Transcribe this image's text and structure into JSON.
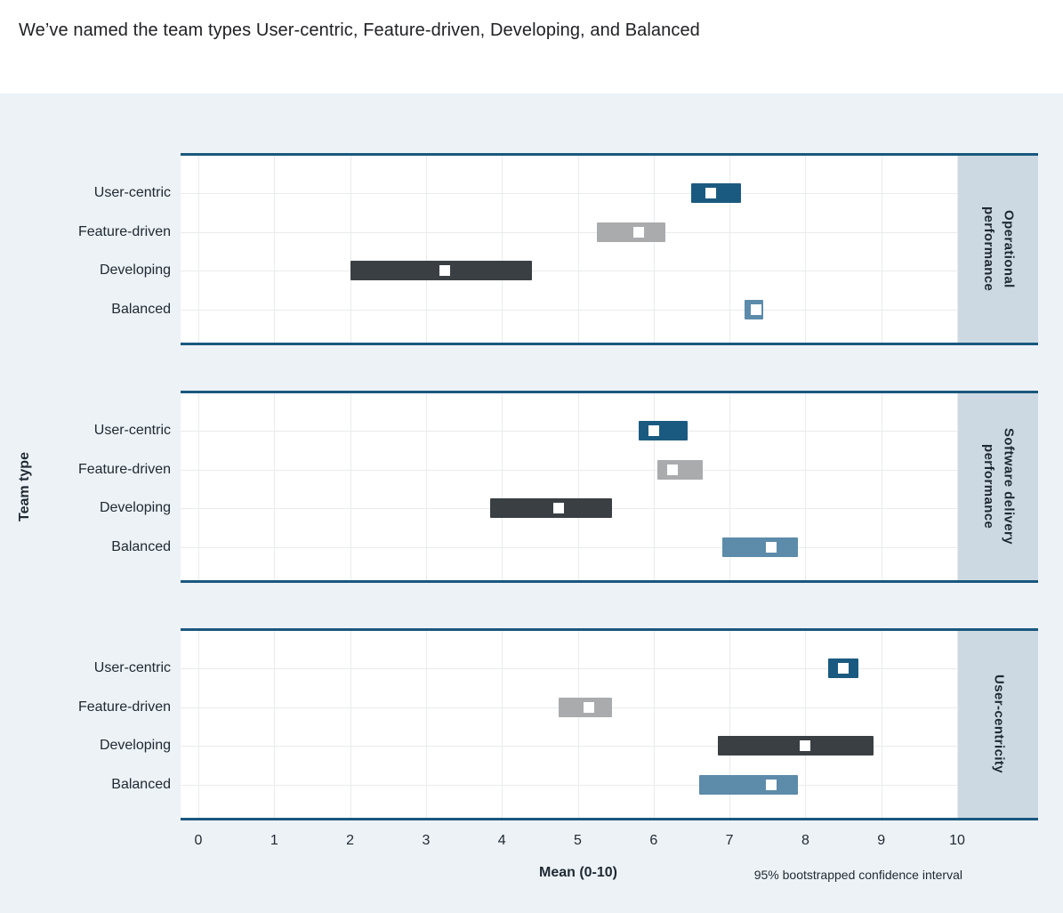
{
  "header": {
    "title": "We’ve named the team types User-centric, Feature-driven, Developing, and Balanced"
  },
  "colors": {
    "page_bg": "#edf2f6",
    "header_bg": "#ffffff",
    "panel_border": "#1a587f",
    "strip_bg": "#cdd9e2",
    "plot_bg": "#ffffff",
    "grid": "#e9ebec",
    "marker": "#ffffff",
    "text": "#1f2933",
    "teams": {
      "User-centric": "#1b5a80",
      "Feature-driven": "#a9abad",
      "Developing": "#3a3f43",
      "Balanced": "#5d8baa"
    }
  },
  "chart_data": {
    "type": "interval",
    "title": "We’ve named the team types User-centric, Feature-driven, Developing, and Balanced",
    "xlabel": "Mean (0-10)",
    "ylabel": "Team type",
    "note": "95% bootstrapped confidence interval",
    "xlim": [
      0,
      10
    ],
    "xticks": [
      0,
      1,
      2,
      3,
      4,
      5,
      6,
      7,
      8,
      9,
      10
    ],
    "grid": true,
    "categories": [
      "User-centric",
      "Feature-driven",
      "Developing",
      "Balanced"
    ],
    "panels": [
      {
        "label": "Operational\nperformance",
        "label_plain": "Operational performance",
        "rows": [
          {
            "team": "User-centric",
            "mean": 6.75,
            "ci_low": 6.5,
            "ci_high": 7.15
          },
          {
            "team": "Feature-driven",
            "mean": 5.8,
            "ci_low": 5.25,
            "ci_high": 6.15
          },
          {
            "team": "Developing",
            "mean": 3.25,
            "ci_low": 2.0,
            "ci_high": 4.4
          },
          {
            "team": "Balanced",
            "mean": 7.35,
            "ci_low": 7.2,
            "ci_high": 7.45
          }
        ]
      },
      {
        "label": "Software delivery\nperformance",
        "label_plain": "Software delivery performance",
        "rows": [
          {
            "team": "User-centric",
            "mean": 6.0,
            "ci_low": 5.8,
            "ci_high": 6.45
          },
          {
            "team": "Feature-driven",
            "mean": 6.25,
            "ci_low": 6.05,
            "ci_high": 6.65
          },
          {
            "team": "Developing",
            "mean": 4.75,
            "ci_low": 3.85,
            "ci_high": 5.45
          },
          {
            "team": "Balanced",
            "mean": 7.55,
            "ci_low": 6.9,
            "ci_high": 7.9
          }
        ]
      },
      {
        "label": "User-centricity",
        "label_plain": "User-centricity",
        "rows": [
          {
            "team": "User-centric",
            "mean": 8.5,
            "ci_low": 8.3,
            "ci_high": 8.7
          },
          {
            "team": "Feature-driven",
            "mean": 5.15,
            "ci_low": 4.75,
            "ci_high": 5.45
          },
          {
            "team": "Developing",
            "mean": 8.0,
            "ci_low": 6.85,
            "ci_high": 8.9
          },
          {
            "team": "Balanced",
            "mean": 7.55,
            "ci_low": 6.6,
            "ci_high": 7.9
          }
        ]
      }
    ]
  }
}
